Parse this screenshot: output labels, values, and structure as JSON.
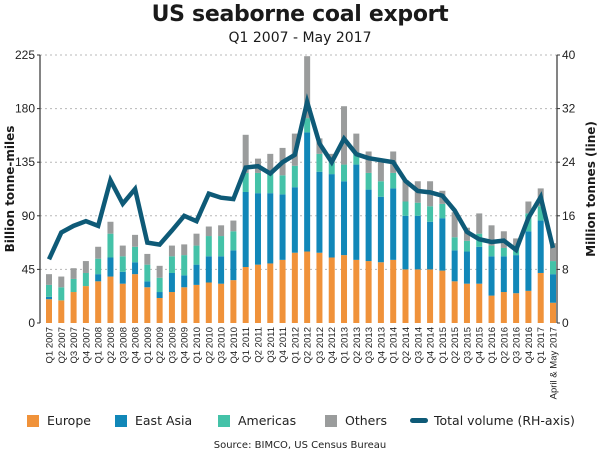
{
  "chart_data": {
    "type": "bar",
    "subtype": "stacked bar with line on secondary axis",
    "title": "US seaborne coal export",
    "subtitle": "Q1 2007 - May 2017",
    "ylabel": "Billion tonne-miles",
    "y2label": "Million tonnes (line)",
    "ylim": [
      0,
      225
    ],
    "yticks": [
      0,
      45,
      90,
      135,
      180,
      225
    ],
    "y2lim": [
      0,
      40
    ],
    "y2ticks": [
      0,
      8,
      16,
      24,
      32,
      40
    ],
    "grid": true,
    "legend_position": "bottom",
    "source": "Source: BIMCO, US Census Bureau",
    "categories": [
      "Q1 2007",
      "Q2 2007",
      "Q3 2007",
      "Q4 2007",
      "Q1 2008",
      "Q2 2008",
      "Q3 2008",
      "Q4 2008",
      "Q1 2009",
      "Q2 2009",
      "Q3 2009",
      "Q4 2009",
      "Q1 2010",
      "Q2 2010",
      "Q3 2010",
      "Q4 2010",
      "Q1 2011",
      "Q2 2011",
      "Q3 2011",
      "Q4 2011",
      "Q1 2012",
      "Q2 2012",
      "Q3 2012",
      "Q4 2012",
      "Q1 2013",
      "Q2 2013",
      "Q3 2013",
      "Q4 2013",
      "Q1 2014",
      "Q2 2014",
      "Q3 2014",
      "Q4 2014",
      "Q1 2015",
      "Q2 2015",
      "Q3 2015",
      "Q4 2015",
      "Q1 2016",
      "Q2 2016",
      "Q3 2016",
      "Q4 2016",
      "Q1 2017",
      "April & May 2017"
    ],
    "series": [
      {
        "name": "Europe",
        "color": "#f0923a",
        "values": [
          20,
          19,
          26,
          31,
          35,
          39,
          33,
          41,
          30,
          21,
          26,
          30,
          32,
          34,
          33,
          36,
          47,
          49,
          50,
          53,
          59,
          60,
          59,
          55,
          57,
          53,
          52,
          51,
          53,
          45,
          45,
          45,
          44,
          35,
          33,
          33,
          23,
          26,
          25,
          27,
          42,
          17
        ]
      },
      {
        "name": "East Asia",
        "color": "#1187b8",
        "values": [
          2,
          0,
          0,
          0,
          6,
          16,
          10,
          10,
          5,
          5,
          16,
          10,
          17,
          22,
          23,
          25,
          63,
          60,
          59,
          55,
          55,
          100,
          68,
          70,
          62,
          80,
          60,
          55,
          60,
          45,
          45,
          40,
          44,
          26,
          27,
          31,
          33,
          30,
          32,
          50,
          44,
          24
        ]
      },
      {
        "name": "Americas",
        "color": "#44c2a8",
        "values": [
          10,
          11,
          11,
          11,
          13,
          20,
          13,
          13,
          14,
          12,
          14,
          17,
          16,
          17,
          17,
          16,
          16,
          17,
          17,
          16,
          18,
          12,
          15,
          10,
          14,
          10,
          14,
          13,
          13,
          12,
          11,
          13,
          12,
          11,
          9,
          11,
          9,
          7,
          8,
          15,
          12,
          11
        ]
      },
      {
        "name": "Others",
        "color": "#9a9c9c",
        "values": [
          9,
          9,
          9,
          10,
          10,
          10,
          9,
          10,
          9,
          10,
          9,
          9,
          10,
          8,
          9,
          9,
          32,
          12,
          16,
          23,
          27,
          52,
          13,
          7,
          49,
          16,
          18,
          17,
          18,
          18,
          18,
          21,
          11,
          21,
          11,
          17,
          17,
          14,
          6,
          10,
          15,
          15
        ]
      }
    ],
    "line": {
      "name": "Total volume (RH-axis)",
      "color": "#0e5a77",
      "axis": "right",
      "values": [
        9.5,
        13.5,
        14.5,
        15.2,
        14.5,
        21.3,
        17.8,
        20,
        12,
        11.7,
        13.8,
        16,
        15.2,
        19.3,
        18.7,
        18.5,
        23.2,
        23.4,
        22.3,
        24,
        25.1,
        33,
        26.8,
        24,
        27.5,
        25.2,
        24.6,
        24.3,
        24,
        21.2,
        19.7,
        19.5,
        19,
        16.8,
        13.6,
        12.5,
        12.1,
        12.3,
        10.9,
        15.7,
        18.8,
        11.2
      ]
    }
  },
  "legend": {
    "europe": "Europe",
    "east_asia": "East Asia",
    "americas": "Americas",
    "others": "Others",
    "total": "Total volume (RH-axis)"
  }
}
